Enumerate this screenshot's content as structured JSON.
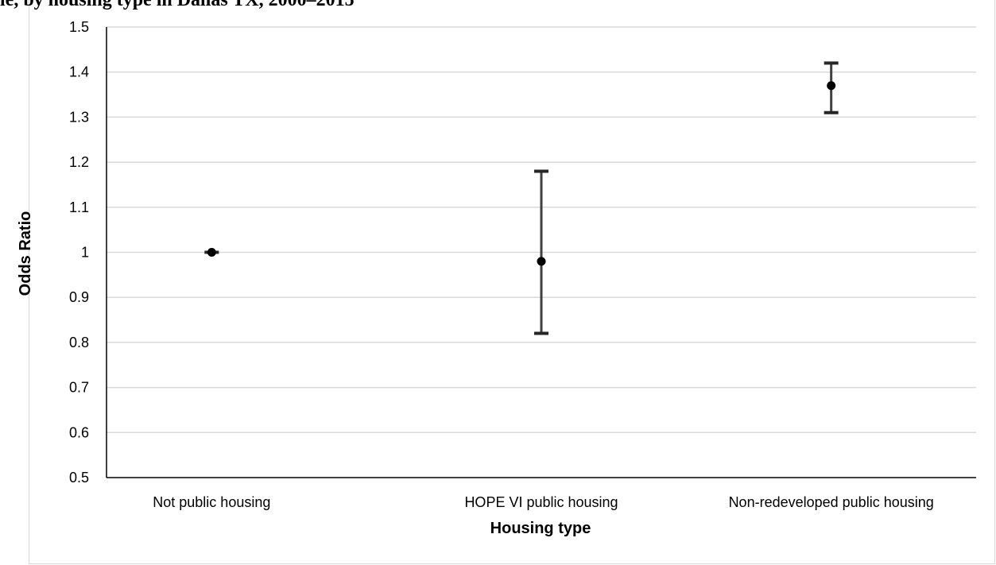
{
  "header": {
    "clipped_title_text": "le, by housing type in Dallas TX, 2000–2015"
  },
  "chart_data": {
    "type": "scatter",
    "title": "",
    "xlabel": "Housing type",
    "ylabel": "Odds Ratio",
    "ylim": [
      0.5,
      1.5
    ],
    "yticks": [
      0.5,
      0.6,
      0.7,
      0.8,
      0.9,
      1,
      1.1,
      1.2,
      1.3,
      1.4,
      1.5
    ],
    "ytick_labels": [
      "0.5",
      "0.6",
      "0.7",
      "0.8",
      "0.9",
      "1",
      "1.1",
      "1.2",
      "1.3",
      "1.4",
      "1.5"
    ],
    "categories": [
      "Not public housing",
      "HOPE VI public housing",
      "Non-redeveloped public housing"
    ],
    "series": [
      {
        "values": [
          1.0,
          0.98,
          1.37
        ],
        "lower": [
          1.0,
          0.82,
          1.31
        ],
        "upper": [
          1.0,
          1.18,
          1.42
        ]
      }
    ],
    "grid": true,
    "legend": "none",
    "colors": {
      "marker": "#000000",
      "errorbar": "#404040",
      "grid": "#d9d9d9",
      "axis": "#000000"
    }
  }
}
